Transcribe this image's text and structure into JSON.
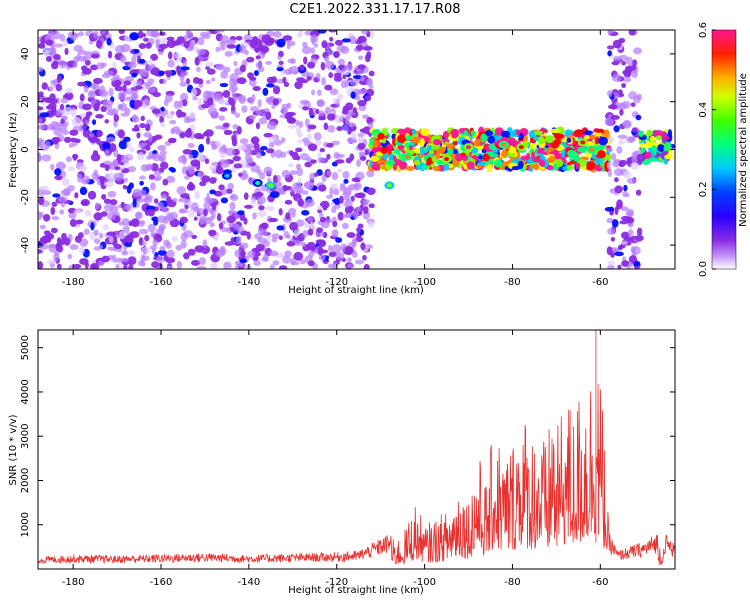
{
  "title": "C2E1.2022.331.17.17.R08",
  "chart_data": [
    {
      "type": "heatmap",
      "xlabel": "Height of straight line (km)",
      "ylabel": "Frequency (Hz)",
      "xlim": [
        -188,
        -43
      ],
      "ylim": [
        -50,
        50
      ],
      "x_ticks": [
        -180,
        -160,
        -140,
        -120,
        -100,
        -80,
        -60
      ],
      "y_ticks": [
        -40,
        -20,
        0,
        20,
        40
      ],
      "colorbar": {
        "label": "Normalized spectral amplitude",
        "range": [
          0.0,
          0.6
        ],
        "ticks": [
          0.0,
          0.2,
          0.4,
          0.6
        ],
        "colormap": [
          "#ffffff",
          "#9b30ff",
          "#6a00ff",
          "#0010ff",
          "#00c8ff",
          "#00ff80",
          "#80ff00",
          "#ffff00",
          "#ff8000",
          "#ff0000",
          "#ff1493"
        ]
      },
      "regions": [
        {
          "x_range": [
            -188,
            -112
          ],
          "f_range": [
            -50,
            50
          ],
          "level": 0.08,
          "description": "broadband noise"
        },
        {
          "x_range": [
            -112,
            -58
          ],
          "f_range": [
            -8,
            8
          ],
          "level": 0.35,
          "description": "signal band near 0 Hz"
        },
        {
          "x_range": [
            -58,
            -51
          ],
          "f_range": [
            -50,
            50
          ],
          "level": 0.08,
          "description": "broadband noise"
        },
        {
          "x_range": [
            -51,
            -44
          ],
          "f_range": [
            -5,
            7
          ],
          "level": 0.25,
          "description": "signal band near 0 Hz"
        }
      ],
      "features": [
        {
          "x": -145,
          "f": -11,
          "level": 0.2
        },
        {
          "x": -138,
          "f": -14,
          "level": 0.25
        },
        {
          "x": -135,
          "f": -15,
          "level": 0.3
        },
        {
          "x": -108,
          "f": -15,
          "level": 0.3
        },
        {
          "x": -104,
          "f": -3,
          "level": 0.45
        },
        {
          "x": -95,
          "f": -4,
          "level": 0.5
        },
        {
          "x": -90,
          "f": 1,
          "level": 0.55
        },
        {
          "x": -82,
          "f": 2,
          "level": 0.45
        },
        {
          "x": -78,
          "f": 1,
          "level": 0.5
        },
        {
          "x": -64,
          "f": 3,
          "level": 0.5
        },
        {
          "x": -62,
          "f": 0,
          "level": 0.45
        }
      ]
    },
    {
      "type": "line",
      "xlabel": "Height of straight line (km)",
      "ylabel": "SNR (10 * v/v)",
      "xlim": [
        -188,
        -43
      ],
      "ylim": [
        0,
        5400
      ],
      "x_ticks": [
        -180,
        -160,
        -140,
        -120,
        -100,
        -80,
        -60
      ],
      "y_ticks": [
        1000,
        2000,
        3000,
        4000,
        5000
      ],
      "color": "#e8312f",
      "series": [
        {
          "x": [
            -188,
            -180,
            -170,
            -160,
            -150,
            -140,
            -130,
            -120,
            -115,
            -110,
            -105,
            -102,
            -100,
            -97,
            -95,
            -92,
            -90,
            -88,
            -86,
            -84,
            -82,
            -80,
            -78,
            -76,
            -74,
            -72,
            -71,
            -70,
            -68,
            -66,
            -64,
            -62,
            -61,
            -60,
            -59,
            -58,
            -56,
            -54,
            -50,
            -46,
            -43
          ],
          "values": [
            200,
            230,
            220,
            240,
            260,
            230,
            250,
            270,
            300,
            500,
            700,
            1400,
            900,
            1100,
            1200,
            1900,
            1500,
            2500,
            1800,
            3100,
            2400,
            2700,
            3500,
            2900,
            3000,
            2500,
            3900,
            2800,
            3700,
            3300,
            4000,
            4300,
            5400,
            4000,
            2800,
            600,
            300,
            350,
            450,
            650,
            400
          ]
        }
      ]
    }
  ]
}
